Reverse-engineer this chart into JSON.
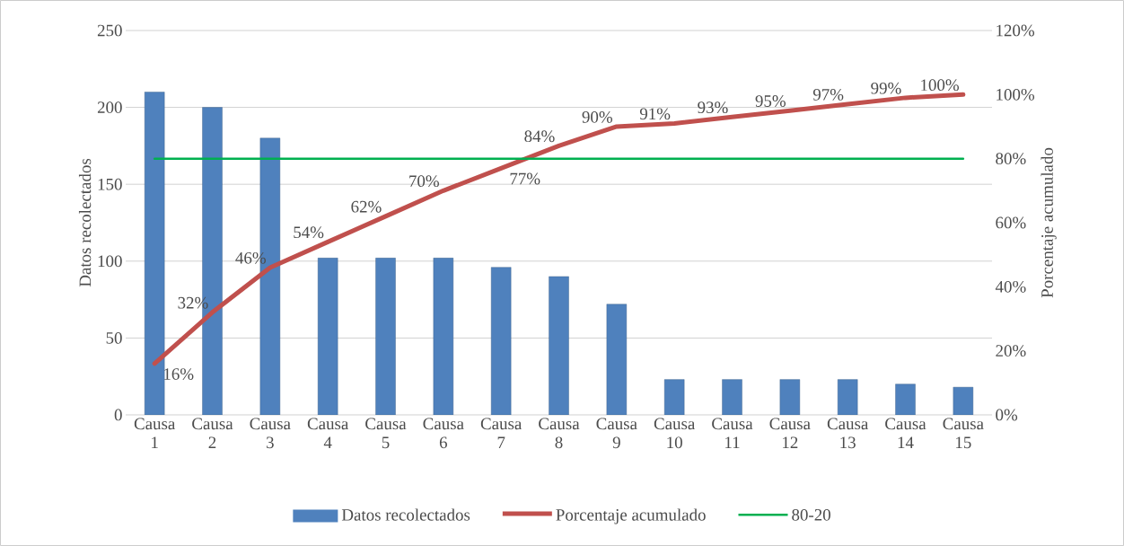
{
  "chart_data": {
    "type": "bar",
    "categories": [
      "Causa 1",
      "Causa 2",
      "Causa 3",
      "Causa 4",
      "Causa 5",
      "Causa 6",
      "Causa 7",
      "Causa 8",
      "Causa 9",
      "Causa 10",
      "Causa 11",
      "Causa 12",
      "Causa 13",
      "Causa 14",
      "Causa 15"
    ],
    "series": [
      {
        "name": "Datos recolectados",
        "color": "#4f81bd",
        "values": [
          210,
          200,
          180,
          102,
          102,
          102,
          96,
          90,
          72,
          23,
          23,
          23,
          23,
          20,
          18
        ]
      },
      {
        "name": "Porcentaje acumulado",
        "type": "line",
        "axis": "y2",
        "color": "#c0504d",
        "values": [
          16,
          32,
          46,
          54,
          62,
          70,
          77,
          84,
          90,
          91,
          93,
          95,
          97,
          99,
          100
        ],
        "value_labels": [
          "16%",
          "32%",
          "46%",
          "54%",
          "62%",
          "70%",
          "77%",
          "84%",
          "90%",
          "91%",
          "93%",
          "95%",
          "97%",
          "99%",
          "100%"
        ]
      },
      {
        "name": "80-20",
        "type": "line",
        "axis": "y2",
        "color": "#00b050",
        "values": [
          80,
          80,
          80,
          80,
          80,
          80,
          80,
          80,
          80,
          80,
          80,
          80,
          80,
          80,
          80
        ]
      }
    ],
    "ylabel": "Datos recolectados",
    "y2label": "Porcentaje acumulado",
    "ylim": [
      0,
      250
    ],
    "yticks": [
      0,
      50,
      100,
      150,
      200,
      250
    ],
    "y2lim": [
      0,
      120
    ],
    "y2ticks": [
      {
        "value": 0,
        "label": "0%"
      },
      {
        "value": 20,
        "label": "20%"
      },
      {
        "value": 40,
        "label": "40%"
      },
      {
        "value": 60,
        "label": "60%"
      },
      {
        "value": 80,
        "label": "80%"
      },
      {
        "value": 100,
        "label": "100%"
      },
      {
        "value": 120,
        "label": "120%"
      }
    ],
    "grid": "y",
    "legend": "bottom"
  }
}
